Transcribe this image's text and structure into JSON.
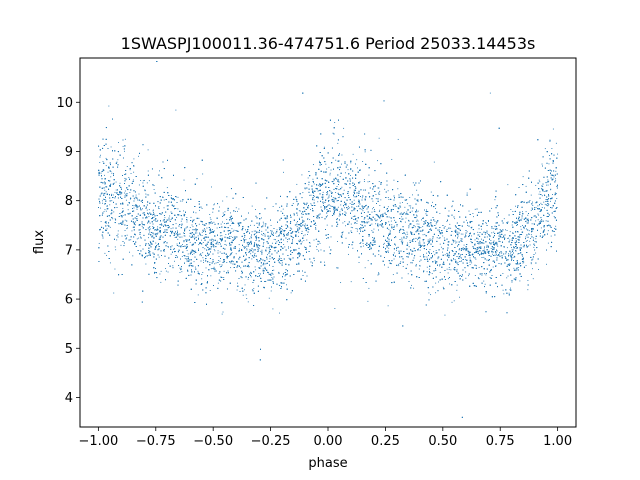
{
  "chart_data": {
    "type": "scatter",
    "title": "1SWASPJ100011.36-474751.6 Period 25033.14453s",
    "xlabel": "phase",
    "ylabel": "flux",
    "xlim": [
      -1.08,
      1.08
    ],
    "ylim": [
      3.4,
      10.9
    ],
    "x_ticks": [
      -1.0,
      -0.75,
      -0.5,
      -0.25,
      0.0,
      0.25,
      0.5,
      0.75,
      1.0
    ],
    "x_tick_labels": [
      "−1.00",
      "−0.75",
      "−0.50",
      "−0.25",
      "0.00",
      "0.25",
      "0.50",
      "0.75",
      "1.00"
    ],
    "y_ticks": [
      4,
      5,
      6,
      7,
      8,
      9,
      10
    ],
    "y_tick_labels": [
      "4",
      "5",
      "6",
      "7",
      "8",
      "9",
      "10"
    ],
    "grid": false,
    "marker_color": "#1f77b4",
    "series": [
      {
        "phase_range": [
          -1.0,
          1.0
        ],
        "profile": [
          {
            "phase": -1.0,
            "flux": 8.2
          },
          {
            "phase": -0.9,
            "flux": 7.9
          },
          {
            "phase": -0.75,
            "flux": 7.5
          },
          {
            "phase": -0.5,
            "flux": 7.1
          },
          {
            "phase": -0.25,
            "flux": 7.0
          },
          {
            "phase": -0.15,
            "flux": 7.2
          },
          {
            "phase": 0.0,
            "flux": 8.2
          },
          {
            "phase": 0.1,
            "flux": 7.9
          },
          {
            "phase": 0.25,
            "flux": 7.5
          },
          {
            "phase": 0.5,
            "flux": 7.1
          },
          {
            "phase": 0.75,
            "flux": 7.0
          },
          {
            "phase": 0.85,
            "flux": 7.2
          },
          {
            "phase": 1.0,
            "flux": 8.2
          }
        ],
        "point_count": 14000
      }
    ]
  }
}
